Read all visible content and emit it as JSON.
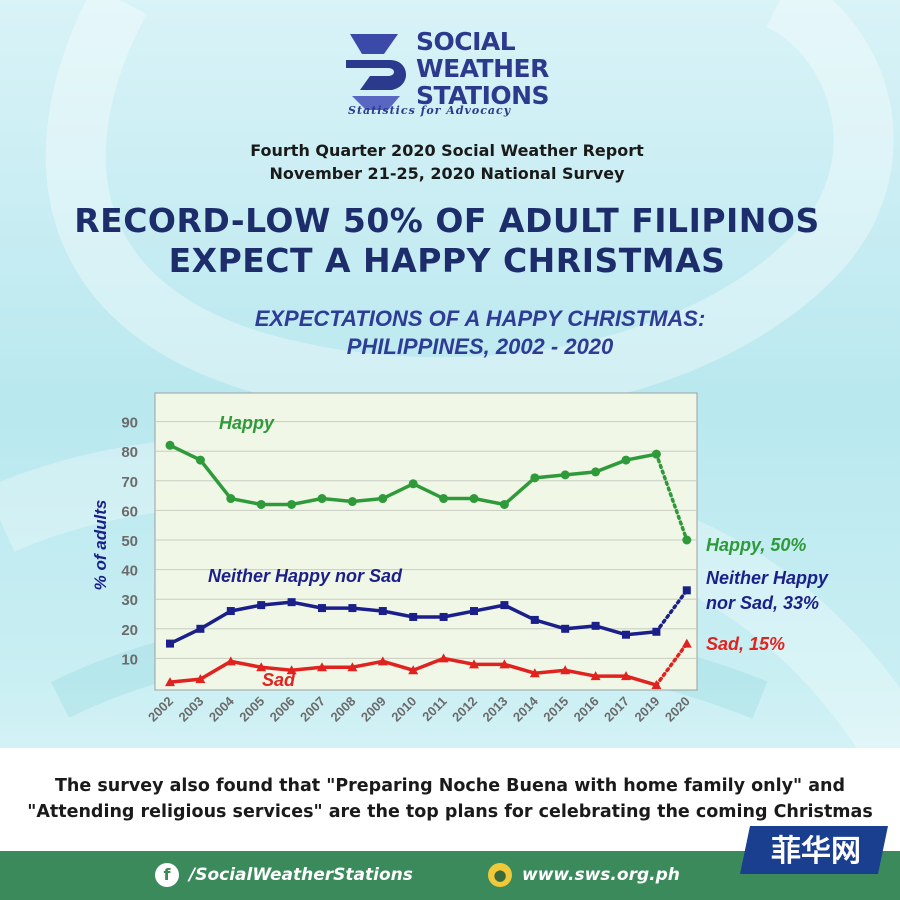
{
  "logo": {
    "name_lines": [
      "SOCIAL",
      "WEATHER",
      "STATIONS"
    ],
    "tagline": "Statistics for Advocacy"
  },
  "report": {
    "line1": "Fourth Quarter 2020 Social Weather Report",
    "line2": "November 21-25, 2020  National Survey"
  },
  "headline": {
    "line1": "RECORD-LOW 50% OF ADULT FILIPINOS",
    "line2": "EXPECT A HAPPY CHRISTMAS"
  },
  "chart_title": {
    "line1": "EXPECTATIONS OF A HAPPY CHRISTMAS:",
    "line2": "PHILIPPINES, 2002 - 2020"
  },
  "chart_data": {
    "type": "line",
    "title": "EXPECTATIONS OF A HAPPY CHRISTMAS: PHILIPPINES, 2002 - 2020",
    "ylabel": "% of adults",
    "xlabel": "",
    "x": [
      "2002",
      "2003",
      "2004",
      "2005",
      "2006",
      "2007",
      "2008",
      "2009",
      "2010",
      "2011",
      "2012",
      "2013",
      "2014",
      "2015",
      "2016",
      "2017",
      "2019",
      "2020"
    ],
    "ylim": [
      0,
      95
    ],
    "yticks": [
      10,
      20,
      30,
      40,
      50,
      60,
      70,
      80,
      90
    ],
    "grid": true,
    "last_segment_style": "dotted",
    "series": [
      {
        "name": "Happy",
        "color": "#2e9a3a",
        "marker": "circle",
        "values": [
          82,
          77,
          64,
          62,
          62,
          64,
          63,
          64,
          69,
          64,
          64,
          62,
          71,
          72,
          73,
          77,
          79,
          50
        ]
      },
      {
        "name": "Neither Happy nor Sad",
        "color": "#1a1f8a",
        "marker": "square",
        "values": [
          15,
          20,
          26,
          28,
          29,
          27,
          27,
          26,
          24,
          24,
          26,
          28,
          23,
          20,
          21,
          18,
          19,
          33
        ]
      },
      {
        "name": "Sad",
        "color": "#e0231f",
        "marker": "triangle",
        "values": [
          2,
          3,
          9,
          7,
          6,
          7,
          7,
          9,
          6,
          10,
          8,
          8,
          5,
          6,
          4,
          4,
          1,
          15
        ]
      }
    ],
    "annotations": [
      "Happy, 50%",
      "Neither Happy",
      "nor Sad, 33%",
      "Sad, 15%"
    ]
  },
  "bottom_text": {
    "line1": "The survey also found that \"Preparing Noche Buena with home family only\" and",
    "line2": "\"Attending religious services\" are the top plans for celebrating the coming Christmas"
  },
  "footer": {
    "facebook_icon": "facebook-icon",
    "facebook_handle": "/SocialWeatherStations",
    "web_icon": "globe-icon",
    "website": "www.sws.org.ph"
  },
  "watermark": {
    "text": "菲华网"
  },
  "colors": {
    "navy": "#1d2d6b",
    "footer_green": "#3a8a5c",
    "plot_bg": "#f1f7e6"
  }
}
